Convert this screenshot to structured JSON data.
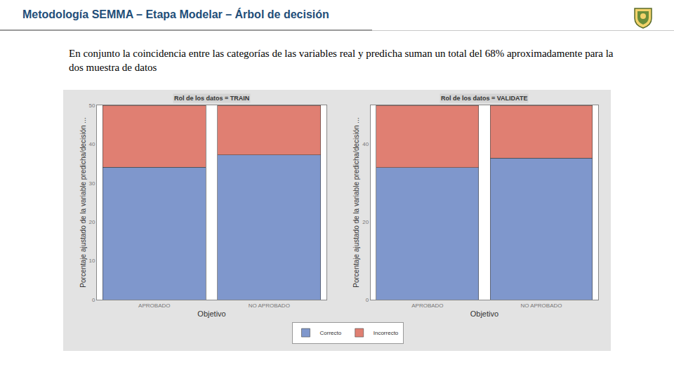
{
  "header": {
    "title": "Metodología SEMMA – Etapa Modelar – Árbol de decisión"
  },
  "text": "En conjunto la coincidencia entre las categorías de las variables real y predicha suman un total del 68% aproximadamente para la dos muestra de datos",
  "chart_data": [
    {
      "type": "bar",
      "stacked": true,
      "title": "Rol de los datos = TRAIN",
      "x_label": "Objetivo",
      "y_label": "Porcentaje ajustado de la variable predicha/decisión ...",
      "categories": [
        "APROBADO",
        "NO APROBADO"
      ],
      "series": [
        {
          "name": "Correcto",
          "color": "#7f97cc",
          "values": [
            34.1,
            37.2
          ]
        },
        {
          "name": "Incorrecto",
          "color": "#e07f72",
          "values": [
            15.9,
            12.8
          ]
        }
      ],
      "ylim": [
        0,
        50
      ],
      "yticks": [
        0,
        10,
        20,
        30,
        40,
        50
      ],
      "grid": false,
      "legend": "bottom"
    },
    {
      "type": "bar",
      "stacked": true,
      "title": "Rol de los datos = VALIDATE",
      "x_label": "Objetivo",
      "y_label": "Porcentaje ajustado de la variable predicha/decisión ...",
      "categories": [
        "APROBADO",
        "NO APROBADO"
      ],
      "series": [
        {
          "name": "Correcto",
          "color": "#7f97cc",
          "values": [
            34.0,
            36.4
          ]
        },
        {
          "name": "Incorrecto",
          "color": "#e07f72",
          "values": [
            16.0,
            13.6
          ]
        }
      ],
      "ylim": [
        0,
        50
      ],
      "yticks": [
        0,
        20,
        40
      ],
      "grid": false,
      "legend": "bottom"
    }
  ]
}
